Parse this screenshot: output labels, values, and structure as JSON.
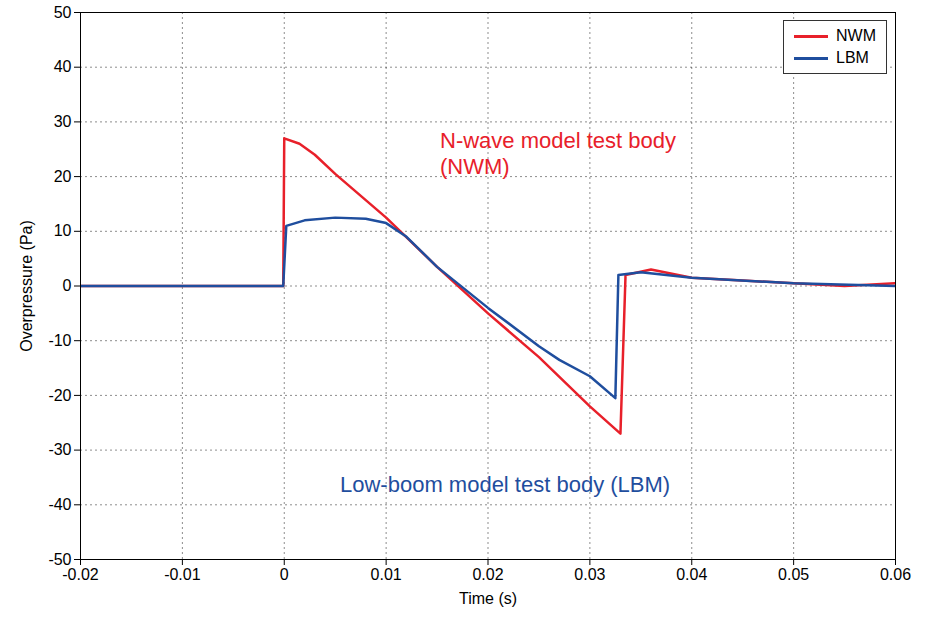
{
  "chart_data": {
    "type": "line",
    "xlabel": "Time (s)",
    "ylabel": "Overpressure (Pa)",
    "xlim": [
      -0.02,
      0.06
    ],
    "xticks": [
      -0.02,
      -0.01,
      0,
      0.01,
      0.02,
      0.03,
      0.04,
      0.05,
      0.06
    ],
    "ylim": [
      -50,
      50
    ],
    "yticks": [
      -50,
      -40,
      -30,
      -20,
      -10,
      0,
      10,
      20,
      30,
      40,
      50
    ],
    "grid": true,
    "legend": "upper right",
    "annotations": [
      {
        "text": "N-wave model test body (NWM)",
        "color": "#e8202a"
      },
      {
        "text": "Low-boom model test body (LBM)",
        "color": "#1f4e9e"
      }
    ],
    "series": [
      {
        "name": "NWM",
        "color": "#e8202a",
        "x": [
          -0.02,
          -0.0001,
          0,
          0.0015,
          0.003,
          0.005,
          0.01,
          0.015,
          0.02,
          0.025,
          0.03,
          0.033,
          0.0335,
          0.036,
          0.04,
          0.045,
          0.05,
          0.055,
          0.06
        ],
        "values": [
          0,
          0,
          27,
          26,
          24,
          20.5,
          12.5,
          3.5,
          -5,
          -13,
          -22,
          -27,
          2,
          3,
          1.5,
          1,
          0.5,
          0,
          0.5
        ]
      },
      {
        "name": "LBM",
        "color": "#1f4e9e",
        "x": [
          -0.02,
          -0.0001,
          0.0002,
          0.002,
          0.005,
          0.008,
          0.01,
          0.012,
          0.015,
          0.02,
          0.025,
          0.027,
          0.03,
          0.0325,
          0.0328,
          0.035,
          0.04,
          0.05,
          0.06
        ],
        "values": [
          0,
          0,
          11,
          12,
          12.5,
          12.3,
          11.5,
          9,
          3.5,
          -4,
          -11,
          -13.5,
          -16.5,
          -20.5,
          2,
          2.5,
          1.5,
          0.5,
          0
        ]
      }
    ]
  }
}
